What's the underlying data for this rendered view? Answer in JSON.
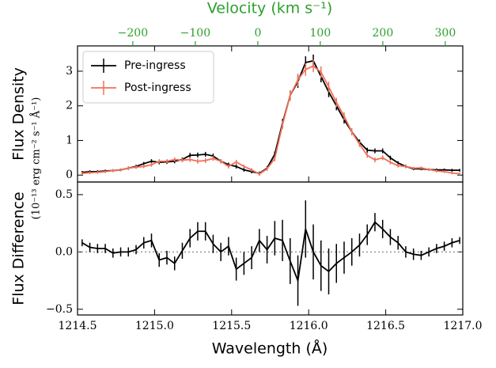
{
  "chart_data": [
    {
      "type": "line",
      "ylabel": "Flux Density",
      "y_units_label": "(10⁻¹³ erg cm⁻² s⁻¹ Å⁻¹)",
      "x2label": "Velocity (km s⁻¹)",
      "x2lim": [
        -288.5,
        328.0
      ],
      "x2ticks": [
        {
          "value": -200,
          "label": "−200"
        },
        {
          "value": -100,
          "label": "−100"
        },
        0,
        100,
        200,
        300
      ],
      "x2color": "#2ca02c",
      "xlim": [
        1214.5,
        1217.0
      ],
      "ylim": [
        -0.2,
        3.73
      ],
      "yticks": [
        0,
        1,
        2,
        3
      ],
      "legend": "upper left",
      "x": [
        1214.53,
        1214.58,
        1214.63,
        1214.68,
        1214.73,
        1214.78,
        1214.83,
        1214.88,
        1214.93,
        1214.98,
        1215.03,
        1215.08,
        1215.13,
        1215.18,
        1215.23,
        1215.28,
        1215.33,
        1215.38,
        1215.43,
        1215.48,
        1215.53,
        1215.58,
        1215.63,
        1215.68,
        1215.73,
        1215.78,
        1215.83,
        1215.88,
        1215.93,
        1215.98,
        1216.03,
        1216.08,
        1216.13,
        1216.18,
        1216.23,
        1216.28,
        1216.33,
        1216.38,
        1216.43,
        1216.48,
        1216.53,
        1216.58,
        1216.63,
        1216.68,
        1216.73,
        1216.78,
        1216.83,
        1216.88,
        1216.93,
        1216.98
      ],
      "series": [
        {
          "name": "Pre-ingress",
          "color": "#000000",
          "values": [
            0.08,
            0.1,
            0.1,
            0.12,
            0.13,
            0.15,
            0.2,
            0.25,
            0.33,
            0.4,
            0.37,
            0.38,
            0.4,
            0.45,
            0.57,
            0.58,
            0.6,
            0.55,
            0.4,
            0.3,
            0.25,
            0.15,
            0.1,
            0.05,
            0.2,
            0.6,
            1.5,
            2.3,
            2.7,
            3.25,
            3.3,
            2.85,
            2.4,
            2.0,
            1.6,
            1.25,
            0.95,
            0.72,
            0.7,
            0.7,
            0.5,
            0.35,
            0.25,
            0.18,
            0.18,
            0.16,
            0.15,
            0.15,
            0.14,
            0.14
          ],
          "errors": [
            0.04,
            0.04,
            0.04,
            0.04,
            0.04,
            0.04,
            0.05,
            0.05,
            0.05,
            0.06,
            0.06,
            0.06,
            0.06,
            0.06,
            0.07,
            0.07,
            0.07,
            0.07,
            0.06,
            0.06,
            0.06,
            0.05,
            0.05,
            0.05,
            0.06,
            0.08,
            0.12,
            0.15,
            0.18,
            0.18,
            0.18,
            0.17,
            0.15,
            0.13,
            0.11,
            0.1,
            0.08,
            0.07,
            0.07,
            0.07,
            0.06,
            0.05,
            0.05,
            0.04,
            0.04,
            0.04,
            0.04,
            0.04,
            0.04,
            0.04
          ]
        },
        {
          "name": "Post-ingress",
          "color": "#f0705a",
          "values": [
            0.05,
            0.07,
            0.08,
            0.1,
            0.13,
            0.15,
            0.2,
            0.23,
            0.25,
            0.3,
            0.4,
            0.4,
            0.45,
            0.43,
            0.45,
            0.4,
            0.42,
            0.48,
            0.4,
            0.25,
            0.38,
            0.25,
            0.15,
            0.03,
            0.18,
            0.48,
            1.45,
            2.3,
            2.75,
            3.05,
            3.15,
            2.97,
            2.55,
            2.1,
            1.7,
            1.25,
            0.89,
            0.57,
            0.44,
            0.5,
            0.37,
            0.27,
            0.25,
            0.2,
            0.21,
            0.16,
            0.12,
            0.1,
            0.06,
            0.04
          ],
          "errors": [
            0.04,
            0.04,
            0.04,
            0.04,
            0.04,
            0.04,
            0.05,
            0.05,
            0.05,
            0.06,
            0.06,
            0.06,
            0.06,
            0.06,
            0.07,
            0.07,
            0.07,
            0.07,
            0.06,
            0.06,
            0.06,
            0.05,
            0.05,
            0.05,
            0.06,
            0.08,
            0.12,
            0.15,
            0.18,
            0.18,
            0.18,
            0.17,
            0.15,
            0.13,
            0.11,
            0.1,
            0.08,
            0.07,
            0.07,
            0.07,
            0.06,
            0.05,
            0.05,
            0.04,
            0.04,
            0.04,
            0.04,
            0.04,
            0.04,
            0.04
          ]
        }
      ]
    },
    {
      "type": "line",
      "ylabel": "Flux Difference",
      "xlabel": "Wavelength (Å)",
      "xlim": [
        1214.5,
        1217.0
      ],
      "xticks": [
        1214.5,
        {
          "value": 1215.0,
          "label": "1215.0"
        },
        1215.5,
        {
          "value": 1216.0,
          "label": "1216.0"
        },
        1216.5,
        {
          "value": 1217.0,
          "label": "1217.0"
        }
      ],
      "ylim": [
        -0.55,
        0.61
      ],
      "yticks": [
        {
          "value": -0.5,
          "label": "−0.5"
        },
        {
          "value": 0.0,
          "label": "0.0"
        },
        0.5
      ],
      "reference_line": 0,
      "x": [
        1214.53,
        1214.58,
        1214.63,
        1214.68,
        1214.73,
        1214.78,
        1214.83,
        1214.88,
        1214.93,
        1214.98,
        1215.03,
        1215.08,
        1215.13,
        1215.18,
        1215.23,
        1215.28,
        1215.33,
        1215.38,
        1215.43,
        1215.48,
        1215.53,
        1215.58,
        1215.63,
        1215.68,
        1215.73,
        1215.78,
        1215.83,
        1215.88,
        1215.93,
        1215.98,
        1216.03,
        1216.08,
        1216.13,
        1216.18,
        1216.23,
        1216.28,
        1216.33,
        1216.38,
        1216.43,
        1216.48,
        1216.53,
        1216.58,
        1216.63,
        1216.68,
        1216.73,
        1216.78,
        1216.83,
        1216.88,
        1216.93,
        1216.98
      ],
      "series": [
        {
          "color": "#000000",
          "values": [
            0.08,
            0.04,
            0.03,
            0.03,
            -0.01,
            0.0,
            0.0,
            0.02,
            0.08,
            0.1,
            -0.07,
            -0.05,
            -0.1,
            0.01,
            0.12,
            0.18,
            0.18,
            0.07,
            0.0,
            0.05,
            -0.15,
            -0.1,
            -0.05,
            0.1,
            0.02,
            0.12,
            0.1,
            -0.08,
            -0.25,
            0.2,
            0.0,
            -0.12,
            -0.17,
            -0.1,
            -0.05,
            0.0,
            0.06,
            0.15,
            0.26,
            0.2,
            0.13,
            0.08,
            0.0,
            -0.02,
            -0.03,
            0.0,
            0.03,
            0.05,
            0.08,
            0.1
          ],
          "errors": [
            0.03,
            0.04,
            0.04,
            0.04,
            0.04,
            0.04,
            0.04,
            0.04,
            0.05,
            0.06,
            0.06,
            0.06,
            0.06,
            0.07,
            0.08,
            0.08,
            0.08,
            0.08,
            0.08,
            0.08,
            0.1,
            0.1,
            0.1,
            0.1,
            0.12,
            0.15,
            0.18,
            0.2,
            0.22,
            0.25,
            0.24,
            0.22,
            0.2,
            0.17,
            0.14,
            0.12,
            0.1,
            0.09,
            0.08,
            0.08,
            0.07,
            0.06,
            0.05,
            0.05,
            0.04,
            0.04,
            0.04,
            0.04,
            0.04,
            0.03
          ]
        }
      ]
    }
  ]
}
